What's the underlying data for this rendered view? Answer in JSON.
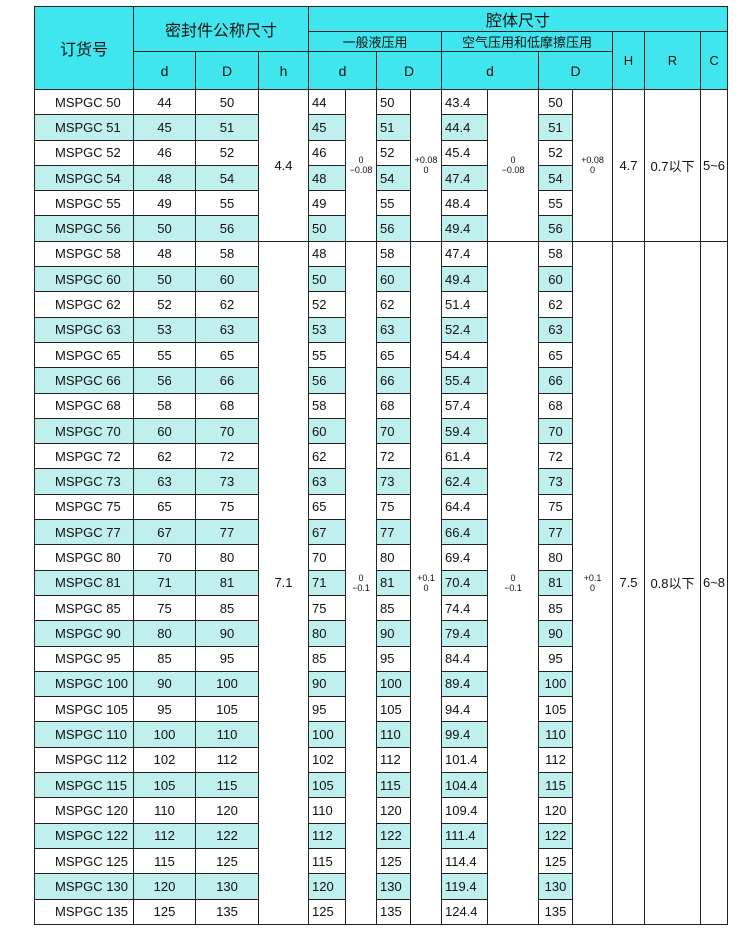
{
  "header": {
    "order_no": "订货号",
    "seal_nominal": "密封件公称尺寸",
    "cavity": "腔体尺寸",
    "hydraulic": "一般液压用",
    "pneumatic": "空气压用和低摩擦压用",
    "d": "d",
    "D": "D",
    "h": "h",
    "H": "H",
    "R": "R",
    "C": "C"
  },
  "colors": {
    "header_bg": "#40e6ee",
    "stripe": "#bff0ee"
  },
  "groups": [
    {
      "h": "4.4",
      "hyd_d_tol": [
        "0",
        "−0.08"
      ],
      "hyd_D_tol": [
        "+0.08",
        "0"
      ],
      "air_d_tol": [
        "0",
        "−0.08"
      ],
      "air_D_tol": [
        "+0.08",
        "0"
      ],
      "H": "4.7",
      "R": "0.7以下",
      "C": "5~6",
      "rows": [
        [
          "MSPGC 50",
          "44",
          "50",
          "44",
          "50",
          "43.4",
          "50"
        ],
        [
          "MSPGC 51",
          "45",
          "51",
          "45",
          "51",
          "44.4",
          "51"
        ],
        [
          "MSPGC 52",
          "46",
          "52",
          "46",
          "52",
          "45.4",
          "52"
        ],
        [
          "MSPGC 54",
          "48",
          "54",
          "48",
          "54",
          "47.4",
          "54"
        ],
        [
          "MSPGC 55",
          "49",
          "55",
          "49",
          "55",
          "48.4",
          "55"
        ],
        [
          "MSPGC 56",
          "50",
          "56",
          "50",
          "56",
          "49.4",
          "56"
        ]
      ]
    },
    {
      "h": "7.1",
      "hyd_d_tol": [
        "0",
        "−0.1"
      ],
      "hyd_D_tol": [
        "+0.1",
        "0"
      ],
      "air_d_tol": [
        "0",
        "−0.1"
      ],
      "air_D_tol": [
        "+0.1",
        "0"
      ],
      "H": "7.5",
      "R": "0.8以下",
      "C": "6~8",
      "rows": [
        [
          "MSPGC 58",
          "48",
          "58",
          "48",
          "58",
          "47.4",
          "58"
        ],
        [
          "MSPGC 60",
          "50",
          "60",
          "50",
          "60",
          "49.4",
          "60"
        ],
        [
          "MSPGC 62",
          "52",
          "62",
          "52",
          "62",
          "51.4",
          "62"
        ],
        [
          "MSPGC 63",
          "53",
          "63",
          "53",
          "63",
          "52.4",
          "63"
        ],
        [
          "MSPGC 65",
          "55",
          "65",
          "55",
          "65",
          "54.4",
          "65"
        ],
        [
          "MSPGC 66",
          "56",
          "66",
          "56",
          "66",
          "55.4",
          "66"
        ],
        [
          "MSPGC 68",
          "58",
          "68",
          "58",
          "68",
          "57.4",
          "68"
        ],
        [
          "MSPGC 70",
          "60",
          "70",
          "60",
          "70",
          "59.4",
          "70"
        ],
        [
          "MSPGC 72",
          "62",
          "72",
          "62",
          "72",
          "61.4",
          "72"
        ],
        [
          "MSPGC 73",
          "63",
          "73",
          "63",
          "73",
          "62.4",
          "73"
        ],
        [
          "MSPGC 75",
          "65",
          "75",
          "65",
          "75",
          "64.4",
          "75"
        ],
        [
          "MSPGC 77",
          "67",
          "77",
          "67",
          "77",
          "66.4",
          "77"
        ],
        [
          "MSPGC 80",
          "70",
          "80",
          "70",
          "80",
          "69.4",
          "80"
        ],
        [
          "MSPGC 81",
          "71",
          "81",
          "71",
          "81",
          "70.4",
          "81"
        ],
        [
          "MSPGC 85",
          "75",
          "85",
          "75",
          "85",
          "74.4",
          "85"
        ],
        [
          "MSPGC 90",
          "80",
          "90",
          "80",
          "90",
          "79.4",
          "90"
        ],
        [
          "MSPGC 95",
          "85",
          "95",
          "85",
          "95",
          "84.4",
          "95"
        ],
        [
          "MSPGC 100",
          "90",
          "100",
          "90",
          "100",
          "89.4",
          "100"
        ],
        [
          "MSPGC 105",
          "95",
          "105",
          "95",
          "105",
          "94.4",
          "105"
        ],
        [
          "MSPGC 110",
          "100",
          "110",
          "100",
          "110",
          "99.4",
          "110"
        ],
        [
          "MSPGC 112",
          "102",
          "112",
          "102",
          "112",
          "101.4",
          "112"
        ],
        [
          "MSPGC 115",
          "105",
          "115",
          "105",
          "115",
          "104.4",
          "115"
        ],
        [
          "MSPGC 120",
          "110",
          "120",
          "110",
          "120",
          "109.4",
          "120"
        ],
        [
          "MSPGC 122",
          "112",
          "122",
          "112",
          "122",
          "111.4",
          "122"
        ],
        [
          "MSPGC 125",
          "115",
          "125",
          "115",
          "125",
          "114.4",
          "125"
        ],
        [
          "MSPGC 130",
          "120",
          "130",
          "120",
          "130",
          "119.4",
          "130"
        ],
        [
          "MSPGC 135",
          "125",
          "135",
          "125",
          "135",
          "124.4",
          "135"
        ]
      ]
    }
  ]
}
